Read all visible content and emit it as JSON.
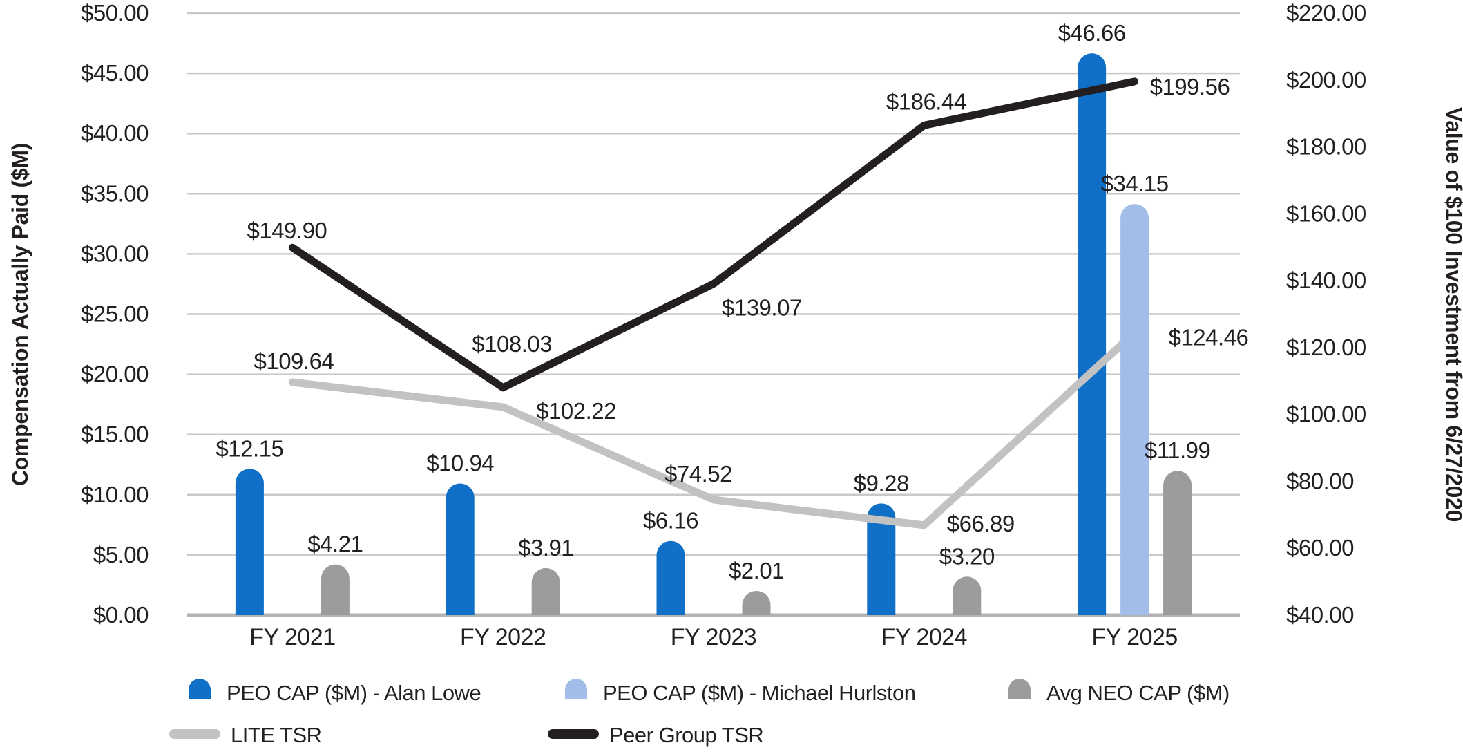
{
  "chart_data": {
    "type": "combo-bar-line",
    "categories": [
      "FY 2021",
      "FY 2022",
      "FY 2023",
      "FY 2024",
      "FY 2025"
    ],
    "series": [
      {
        "name": "PEO CAP ($M) - Alan Lowe",
        "type": "bar",
        "axis": "left",
        "color": "#1070c8",
        "values": [
          12.15,
          10.94,
          6.16,
          9.28,
          46.66
        ],
        "point_labels": [
          "$12.15",
          "$10.94",
          "$6.16",
          "$9.28",
          "$46.66"
        ]
      },
      {
        "name": "PEO CAP ($M) - Michael Hurlston",
        "type": "bar",
        "axis": "left",
        "color": "#a2bde8",
        "values": [
          null,
          null,
          null,
          null,
          34.15
        ],
        "point_labels": [
          null,
          null,
          null,
          null,
          "$34.15"
        ]
      },
      {
        "name": "Avg NEO CAP ($M)",
        "type": "bar",
        "axis": "left",
        "color": "#9c9c9c",
        "values": [
          4.21,
          3.91,
          2.01,
          3.2,
          11.99
        ],
        "point_labels": [
          "$4.21",
          "$3.91",
          "$2.01",
          "$3.20",
          "$11.99"
        ]
      },
      {
        "name": "LITE TSR",
        "type": "line",
        "axis": "right",
        "color": "#c2c2c2",
        "values": [
          109.64,
          102.22,
          74.52,
          66.89,
          124.46
        ],
        "point_labels": [
          "$109.64",
          "$102.22",
          "$74.52",
          "$66.89",
          "$124.46"
        ]
      },
      {
        "name": "Peer Group TSR",
        "type": "line",
        "axis": "right",
        "color": "#231f20",
        "values": [
          149.9,
          108.03,
          139.07,
          186.44,
          199.56
        ],
        "point_labels": [
          "$149.90",
          "$108.03",
          "$139.07",
          "$186.44",
          "$199.56"
        ]
      }
    ],
    "left_axis": {
      "title": "Compensation Actually Paid ($M)",
      "min": 0,
      "max": 50,
      "step": 5,
      "tick_labels": [
        "$0.00",
        "$5.00",
        "$10.00",
        "$15.00",
        "$20.00",
        "$25.00",
        "$30.00",
        "$35.00",
        "$40.00",
        "$45.00",
        "$50.00"
      ]
    },
    "right_axis": {
      "title": "Value of $100 Investment from 6/27/2020",
      "min": 40,
      "max": 220,
      "step": 20,
      "tick_labels": [
        "$40.00",
        "$60.00",
        "$80.00",
        "$100.00",
        "$120.00",
        "$140.00",
        "$160.00",
        "$180.00",
        "$200.00",
        "$220.00"
      ]
    },
    "grid": "horizontal",
    "legend_position": "bottom",
    "colors": {
      "gridline": "#c9c9c9",
      "axis_line": "#b3b3b3",
      "text": "#231f20"
    }
  }
}
